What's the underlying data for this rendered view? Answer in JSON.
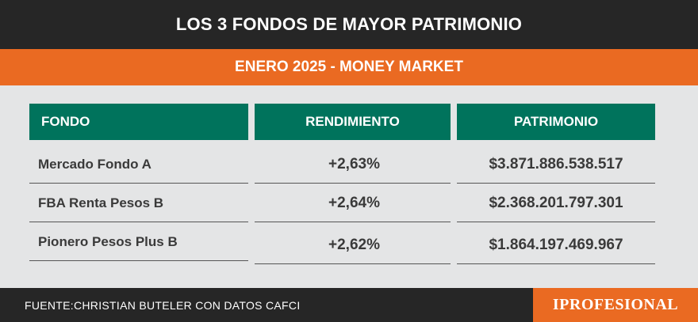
{
  "header": {
    "title": "LOS 3 FONDOS DE MAYOR PATRIMONIO",
    "subtitle": "ENERO 2025 - MONEY MARKET"
  },
  "table": {
    "columns": [
      "FONDO",
      "RENDIMIENTO",
      "PATRIMONIO"
    ],
    "rows": [
      {
        "fondo": "Mercado Fondo A",
        "rendimiento": "+2,63%",
        "patrimonio": "$3.871.886.538.517"
      },
      {
        "fondo": "FBA Renta Pesos B",
        "rendimiento": "+2,64%",
        "patrimonio": "$2.368.201.797.301"
      },
      {
        "fondo": "Pionero Pesos Plus B",
        "rendimiento": "+2,62%",
        "patrimonio": "$1.864.197.469.967"
      }
    ]
  },
  "footer": {
    "source": "FUENTE:CHRISTIAN BUTELER CON DATOS CAFCI",
    "brand": "IPROFESIONAL"
  },
  "colors": {
    "dark": "#262626",
    "accent": "#ea6a22",
    "header_green": "#00735c",
    "background": "#e4e5e6"
  }
}
